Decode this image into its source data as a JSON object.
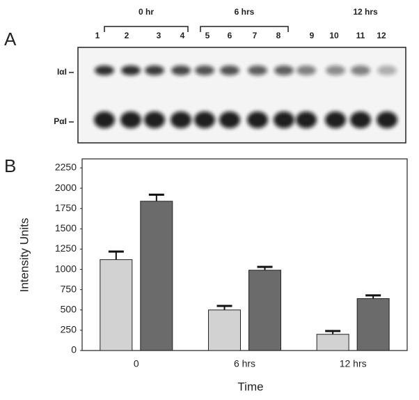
{
  "gel": {
    "panel_label": "A",
    "groups": [
      "0 hr",
      "6 hrs",
      "12 hrs"
    ],
    "lanes": [
      "1",
      "2",
      "3",
      "4",
      "5",
      "6",
      "7",
      "8",
      "9",
      "10",
      "11",
      "12"
    ],
    "rows": [
      "IαI",
      "PαI"
    ]
  },
  "chart_data": {
    "type": "bar",
    "panel_label": "B",
    "x_label": "Time",
    "y_label": "Intensity Units",
    "categories": [
      "0",
      "6 hrs",
      "12 hrs"
    ],
    "series": [
      {
        "color": "#d2d2d2",
        "values": [
          1120,
          500,
          200
        ],
        "errors": [
          100,
          50,
          40
        ]
      },
      {
        "color": "#6b6b6b",
        "values": [
          1840,
          990,
          640
        ],
        "errors": [
          80,
          40,
          40
        ]
      }
    ],
    "ylim": [
      0,
      2250
    ],
    "yticks": [
      0,
      250,
      500,
      750,
      1000,
      1250,
      1500,
      1750,
      2000,
      2250
    ]
  }
}
